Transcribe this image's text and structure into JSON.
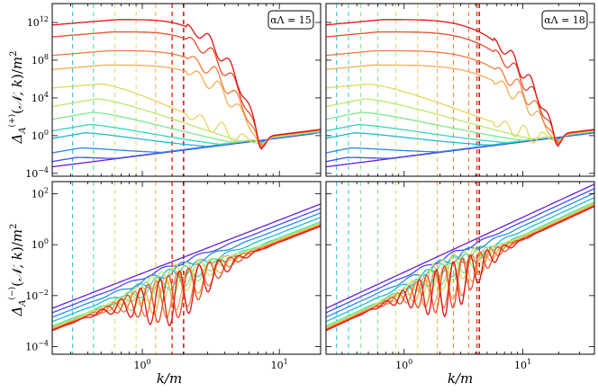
{
  "figure": {
    "x_label": "k/m",
    "y_label_top": "Δ_A^(+)(N,k)/m²",
    "y_label_bottom": "Δ_A^(−)(N,k)/m²"
  },
  "chart_data": [
    {
      "type": "line",
      "panel": "top-left",
      "title": "",
      "annotation": "αΛ = 15",
      "xscale": "log",
      "yscale": "log",
      "xlim": [
        0.22,
        20
      ],
      "ylim": [
        5e-05,
        100000000000000.0
      ],
      "xticks": [
        {
          "v": 1,
          "label": "10^0"
        },
        {
          "v": 10,
          "label": "10^1"
        }
      ],
      "yticks": [
        {
          "v": 0.0001,
          "label": "10^-4"
        },
        {
          "v": 1,
          "label": "10^0"
        },
        {
          "v": 10000,
          "label": "10^4"
        },
        {
          "v": 100000000.0,
          "label": "10^8"
        },
        {
          "v": 1000000000000.0,
          "label": "10^12"
        }
      ],
      "mode_marks": [
        0.31,
        0.44,
        0.63,
        0.9,
        1.25,
        1.65,
        2.0
      ],
      "series_count": 12,
      "peak_values": [
        0.0005,
        0.005,
        0.05,
        2,
        15,
        300,
        8000,
        300000.0,
        30000000.0,
        1000000000.0,
        100000000000.0,
        2000000000000.0
      ],
      "valley_position": 7.5,
      "late_value_at_xmax": 1.5
    },
    {
      "type": "line",
      "panel": "top-right",
      "title": "",
      "annotation": "αΛ = 18",
      "xscale": "log",
      "yscale": "log",
      "xlim": [
        0.22,
        40
      ],
      "ylim": [
        5e-05,
        100000000000000.0
      ],
      "xticks": [
        {
          "v": 1,
          "label": "10^0"
        },
        {
          "v": 10,
          "label": "10^1"
        }
      ],
      "yticks": [
        {
          "v": 0.0001,
          "label": "10^-4"
        },
        {
          "v": 1,
          "label": "10^0"
        },
        {
          "v": 10000,
          "label": "10^4"
        },
        {
          "v": 100000000.0,
          "label": "10^8"
        },
        {
          "v": 1000000000000.0,
          "label": "10^12"
        }
      ],
      "mode_marks": [
        0.27,
        0.34,
        0.43,
        0.6,
        0.85,
        1.3,
        1.9,
        2.6,
        3.5,
        4.1,
        4.3
      ],
      "series_count": 12,
      "peak_values": [
        0.0005,
        0.005,
        0.05,
        2,
        15,
        300,
        8000,
        300000.0,
        30000000.0,
        1000000000.0,
        100000000000.0,
        2000000000000.0
      ],
      "valley_position": 20,
      "late_value_at_xmax": 1.5
    },
    {
      "type": "line",
      "panel": "bottom-left",
      "title": "",
      "annotation": "",
      "xscale": "log",
      "yscale": "log",
      "xlim": [
        0.22,
        20
      ],
      "ylim": [
        5e-05,
        300
      ],
      "xticks": [
        {
          "v": 1,
          "label": "10^0"
        },
        {
          "v": 10,
          "label": "10^1"
        }
      ],
      "yticks": [
        {
          "v": 0.0001,
          "label": "10^-4"
        },
        {
          "v": 0.01,
          "label": "10^-2"
        },
        {
          "v": 1,
          "label": "10^0"
        },
        {
          "v": 100,
          "label": "10^2"
        }
      ],
      "mode_marks": [
        0.31,
        0.44,
        0.63,
        0.9,
        1.25,
        1.65,
        2.0
      ],
      "series_count": 12,
      "trend_start": 0.0008,
      "trend_end": 10
    },
    {
      "type": "line",
      "panel": "bottom-right",
      "title": "",
      "annotation": "",
      "xscale": "log",
      "yscale": "log",
      "xlim": [
        0.22,
        40
      ],
      "ylim": [
        5e-05,
        300
      ],
      "xticks": [
        {
          "v": 1,
          "label": "10^0"
        },
        {
          "v": 10,
          "label": "10^1"
        }
      ],
      "yticks": [
        {
          "v": 0.0001,
          "label": "10^-4"
        },
        {
          "v": 0.01,
          "label": "10^-2"
        },
        {
          "v": 1,
          "label": "10^0"
        },
        {
          "v": 100,
          "label": "10^2"
        }
      ],
      "mode_marks": [
        0.27,
        0.34,
        0.43,
        0.6,
        0.85,
        1.3,
        1.9,
        2.6,
        3.5,
        4.1,
        4.3
      ],
      "series_count": 12,
      "trend_start": 0.0008,
      "trend_end": 60
    }
  ],
  "palette": [
    "#6a1bd8",
    "#3f4ff0",
    "#2b8be8",
    "#1fbad3",
    "#35d8b8",
    "#7de88c",
    "#b8ea6a",
    "#e6d65a",
    "#f5ad52",
    "#f27b3f",
    "#e84a2c",
    "#e01414"
  ]
}
